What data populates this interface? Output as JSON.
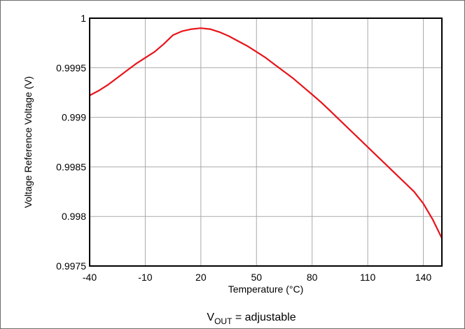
{
  "chart_data": {
    "type": "line",
    "title": "",
    "xlabel": "Temperature (°C)",
    "ylabel": "Voltage Reference Voltage (V)",
    "xlim": [
      -40,
      150
    ],
    "ylim": [
      0.9975,
      1.0
    ],
    "xticks": [
      -40,
      -10,
      20,
      50,
      80,
      110,
      140
    ],
    "yticks": [
      0.9975,
      0.998,
      0.9985,
      0.999,
      0.9995,
      1.0
    ],
    "xtick_labels": [
      "-40",
      "-10",
      "20",
      "50",
      "80",
      "110",
      "140"
    ],
    "ytick_labels": [
      "0.9975",
      "0.998",
      "0.9985",
      "0.999",
      "0.9995",
      "1"
    ],
    "grid": true,
    "series": [
      {
        "color": "#e8141b",
        "x": [
          -40,
          -35,
          -30,
          -25,
          -20,
          -15,
          -10,
          -5,
          0,
          5,
          10,
          15,
          20,
          25,
          30,
          35,
          40,
          45,
          50,
          55,
          60,
          65,
          70,
          75,
          80,
          85,
          90,
          95,
          100,
          105,
          110,
          115,
          120,
          125,
          130,
          135,
          140,
          145,
          150
        ],
        "y": [
          0.99922,
          0.99927,
          0.99933,
          0.9994,
          0.99947,
          0.99954,
          0.9996,
          0.99966,
          0.99974,
          0.99983,
          0.99987,
          0.99989,
          0.9999,
          0.99989,
          0.99986,
          0.99982,
          0.99977,
          0.99972,
          0.99966,
          0.9996,
          0.99953,
          0.99946,
          0.99939,
          0.99931,
          0.99923,
          0.99915,
          0.99906,
          0.99897,
          0.99888,
          0.99879,
          0.9987,
          0.99861,
          0.99852,
          0.99843,
          0.99834,
          0.99825,
          0.99813,
          0.99797,
          0.99778
        ]
      }
    ],
    "caption": {
      "main": "V",
      "subscript": "OUT",
      "rest": " = adjustable"
    }
  }
}
